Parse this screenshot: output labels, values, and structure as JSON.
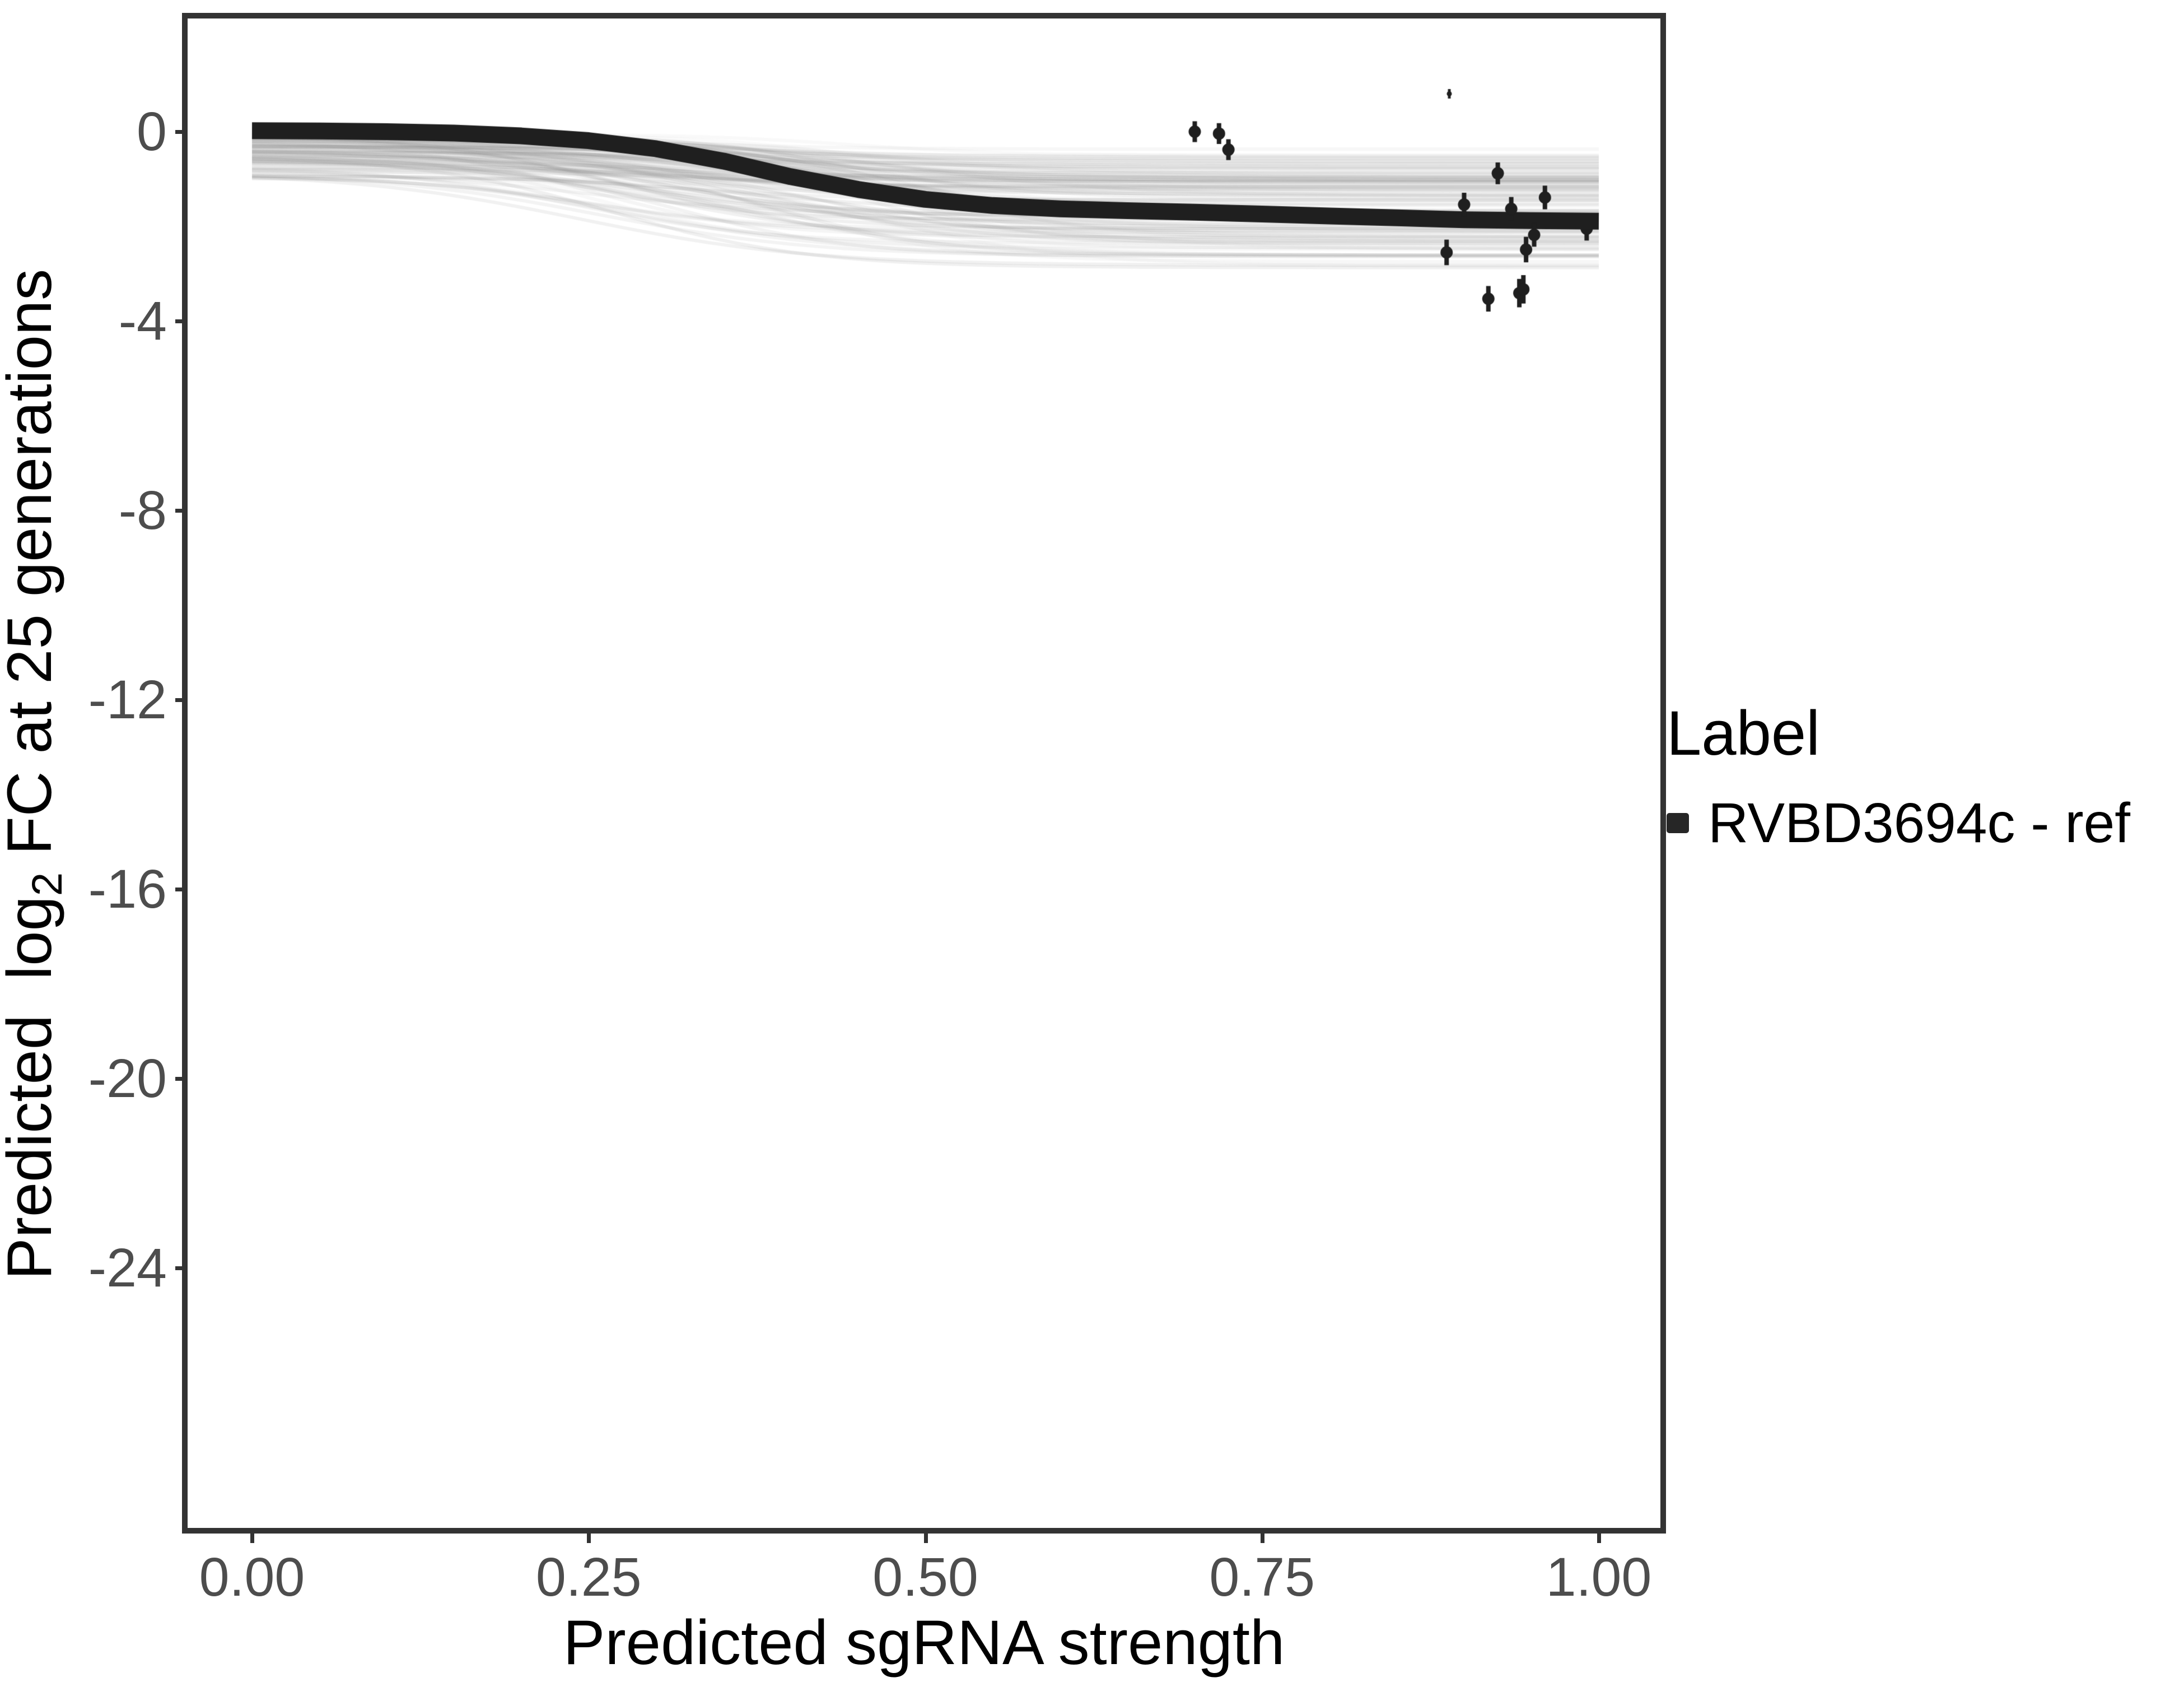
{
  "chart_data": {
    "type": "line",
    "title": "",
    "xlabel": "Predicted sgRNA strength",
    "ylabel": "Predicted log2 FC at 25 generations",
    "ylabel_parts": {
      "pre": "Predicted  log",
      "sub": "2",
      "post": " FC at 25 generations"
    },
    "xlim": [
      0,
      1
    ],
    "ylim": [
      -29.6,
      2.5
    ],
    "grid": "off",
    "legend_position": "right",
    "x_ticks": [
      {
        "label": "0.00",
        "value": 0
      },
      {
        "label": "0.25",
        "value": 0.25
      },
      {
        "label": "0.50",
        "value": 0.5
      },
      {
        "label": "0.75",
        "value": 0.75
      },
      {
        "label": "1.00",
        "value": 1
      }
    ],
    "y_ticks": [
      {
        "label": "0",
        "value": 0
      },
      {
        "label": "-4",
        "value": -4
      },
      {
        "label": "-8",
        "value": -8
      },
      {
        "label": "-12",
        "value": -12
      },
      {
        "label": "-16",
        "value": -16
      },
      {
        "label": "-20",
        "value": -20
      },
      {
        "label": "-24",
        "value": -24
      }
    ],
    "legend": {
      "title": "Label",
      "entries": [
        {
          "label": "RVBD3694c - ref",
          "color": "#262626"
        }
      ]
    },
    "series": [
      {
        "name": "RVBD3694c - ref",
        "type": "line",
        "color": "#1f1f1f",
        "line_width": 30,
        "points": [
          [
            0.0,
            0.02
          ],
          [
            0.05,
            0.015
          ],
          [
            0.1,
            0.0
          ],
          [
            0.15,
            -0.03
          ],
          [
            0.2,
            -0.09
          ],
          [
            0.25,
            -0.19
          ],
          [
            0.3,
            -0.36
          ],
          [
            0.35,
            -0.62
          ],
          [
            0.4,
            -0.95
          ],
          [
            0.45,
            -1.22
          ],
          [
            0.5,
            -1.43
          ],
          [
            0.55,
            -1.56
          ],
          [
            0.6,
            -1.63
          ],
          [
            0.65,
            -1.67
          ],
          [
            0.7,
            -1.7
          ],
          [
            0.75,
            -1.74
          ],
          [
            0.8,
            -1.78
          ],
          [
            0.85,
            -1.82
          ],
          [
            0.9,
            -1.86
          ],
          [
            0.95,
            -1.88
          ],
          [
            1.0,
            -1.89
          ]
        ]
      }
    ],
    "scatter_points": [
      {
        "x": 0.7,
        "y": 0.0,
        "err": 0.22
      },
      {
        "x": 0.718,
        "y": -0.04,
        "err": 0.22
      },
      {
        "x": 0.725,
        "y": -0.38,
        "err": 0.22
      },
      {
        "x": 0.889,
        "y": 0.8,
        "err": 0.1,
        "size": "small"
      },
      {
        "x": 0.887,
        "y": -2.55,
        "err": 0.27
      },
      {
        "x": 0.9,
        "y": -1.54,
        "err": 0.25
      },
      {
        "x": 0.918,
        "y": -3.53,
        "err": 0.27
      },
      {
        "x": 0.925,
        "y": -0.88,
        "err": 0.23
      },
      {
        "x": 0.935,
        "y": -1.63,
        "err": 0.25
      },
      {
        "x": 0.941,
        "y": -3.41,
        "err": 0.3
      },
      {
        "x": 0.944,
        "y": -3.33,
        "err": 0.3
      },
      {
        "x": 0.946,
        "y": -2.49,
        "err": 0.27
      },
      {
        "x": 0.952,
        "y": -2.18,
        "err": 0.25
      },
      {
        "x": 0.96,
        "y": -1.39,
        "err": 0.25
      },
      {
        "x": 0.991,
        "y": -2.05,
        "err": 0.25,
        "behind_curve": true
      }
    ],
    "posterior_band": {
      "description": "spaghetti of semi-transparent posterior sigmoid draws, clipped to x 0..1",
      "count": 115,
      "seed": 11,
      "color": "#787878",
      "line_width": 6,
      "alpha_min": 0.035,
      "alpha_max": 0.12,
      "top_min": -0.05,
      "top_spread": 0.95,
      "deep_top_prob": 0.1,
      "deep_top_extra": 0.95,
      "drop_min": 0.3,
      "drop_spread": 2.1,
      "drop_pow": 1.3,
      "extra_drop_prob": 0.12,
      "extra_drop": 0.6,
      "floor": -3.45,
      "mid_base": 0.36,
      "mid_jitter": 0.12,
      "k_min": 10,
      "k_spread": 8,
      "left_value_extent": [
        -0.05,
        -2.1
      ],
      "right_value_extent": [
        -0.3,
        -3.45
      ]
    },
    "style": {
      "panel_border_color": "#333333",
      "tick_color": "#333333",
      "tick_label_color": "#4d4d4d",
      "axis_title_color": "#000000",
      "point_color": "#1f1f1f",
      "background": "#ffffff"
    }
  }
}
